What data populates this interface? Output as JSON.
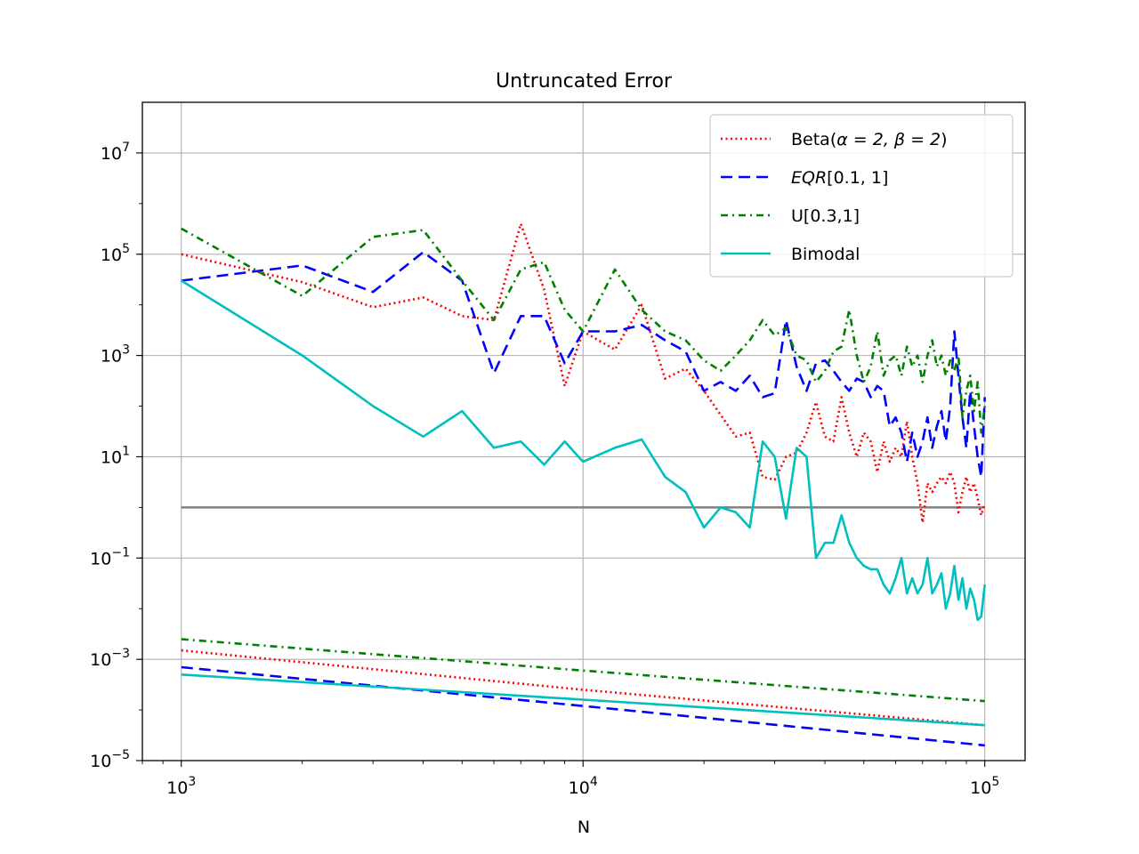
{
  "chart_data": {
    "type": "line",
    "title": "Untruncated Error",
    "xlabel": "N",
    "ylabel": "",
    "xscale": "log",
    "yscale": "log",
    "xlim": [
      800,
      126000
    ],
    "ylim": [
      1e-05,
      100000000
    ],
    "grid": true,
    "legend_position": "top-right",
    "x_ticks": [
      {
        "value": 1000,
        "base": "10",
        "exp": "3"
      },
      {
        "value": 10000,
        "base": "10",
        "exp": "4"
      },
      {
        "value": 100000,
        "base": "10",
        "exp": "5"
      }
    ],
    "y_ticks": [
      {
        "value": 1e-05,
        "base": "10",
        "exp": "−5"
      },
      {
        "value": 0.001,
        "base": "10",
        "exp": "−3"
      },
      {
        "value": 0.1,
        "base": "10",
        "exp": "−1"
      },
      {
        "value": 10,
        "base": "10",
        "exp": "1"
      },
      {
        "value": 1000,
        "base": "10",
        "exp": "3"
      },
      {
        "value": 100000,
        "base": "10",
        "exp": "5"
      },
      {
        "value": 10000000,
        "base": "10",
        "exp": "7"
      }
    ],
    "reference_line": {
      "value": 1,
      "color": "#808080"
    },
    "series": [
      {
        "name": "Beta(α = 2, β = 2)",
        "legend_prefix": "Beta(",
        "legend_math": "α = 2, β = 2",
        "legend_suffix": ")",
        "color": "#ff0000",
        "dash": "2,3.5",
        "points": [
          [
            1000,
            100000
          ],
          [
            2000,
            28000
          ],
          [
            3000,
            9000
          ],
          [
            4000,
            14000
          ],
          [
            5000,
            6000
          ],
          [
            6000,
            5000
          ],
          [
            7000,
            400000
          ],
          [
            8000,
            20000
          ],
          [
            9000,
            250
          ],
          [
            10000,
            3000
          ],
          [
            12000,
            1300
          ],
          [
            14000,
            10000
          ],
          [
            16000,
            350
          ],
          [
            18000,
            550
          ],
          [
            20000,
            200
          ],
          [
            24000,
            25
          ],
          [
            26000,
            30
          ],
          [
            28000,
            4
          ],
          [
            30000,
            3.5
          ],
          [
            32000,
            10
          ],
          [
            34000,
            12
          ],
          [
            36000,
            30
          ],
          [
            38000,
            120
          ],
          [
            40000,
            25
          ],
          [
            42000,
            20
          ],
          [
            44000,
            150
          ],
          [
            46000,
            30
          ],
          [
            48000,
            10
          ],
          [
            50000,
            30
          ],
          [
            52000,
            20
          ],
          [
            54000,
            5
          ],
          [
            56000,
            20
          ],
          [
            58000,
            8
          ],
          [
            60000,
            15
          ],
          [
            62000,
            10
          ],
          [
            64000,
            50
          ],
          [
            66000,
            10
          ],
          [
            68000,
            3
          ],
          [
            70000,
            0.5
          ],
          [
            72000,
            3
          ],
          [
            74000,
            2
          ],
          [
            76000,
            3
          ],
          [
            78000,
            4
          ],
          [
            80000,
            3
          ],
          [
            82000,
            5
          ],
          [
            84000,
            3
          ],
          [
            86000,
            0.8
          ],
          [
            88000,
            2
          ],
          [
            90000,
            4
          ],
          [
            92000,
            2
          ],
          [
            94000,
            3
          ],
          [
            96000,
            1.5
          ],
          [
            98000,
            0.7
          ],
          [
            100000,
            1.2
          ]
        ],
        "lower_points": [
          [
            1000,
            0.0015
          ],
          [
            10000,
            0.00025
          ],
          [
            100000,
            5e-05
          ]
        ]
      },
      {
        "name": "EQR[0.1, 1]",
        "legend_prefix": "",
        "legend_math": "EQR",
        "legend_suffix": "[0.1, 1]",
        "color": "#0000ff",
        "dash": "13,7",
        "points": [
          [
            1000,
            30000
          ],
          [
            2000,
            60000
          ],
          [
            3000,
            18000
          ],
          [
            4000,
            110000
          ],
          [
            5000,
            30000
          ],
          [
            6000,
            450
          ],
          [
            7000,
            6000
          ],
          [
            8000,
            6000
          ],
          [
            9000,
            700
          ],
          [
            10000,
            3000
          ],
          [
            12000,
            3000
          ],
          [
            14000,
            4000
          ],
          [
            16000,
            2000
          ],
          [
            18000,
            1200
          ],
          [
            20000,
            200
          ],
          [
            22000,
            300
          ],
          [
            24000,
            200
          ],
          [
            26000,
            400
          ],
          [
            28000,
            150
          ],
          [
            30000,
            180
          ],
          [
            32000,
            5000
          ],
          [
            34000,
            600
          ],
          [
            36000,
            200
          ],
          [
            38000,
            700
          ],
          [
            40000,
            800
          ],
          [
            42000,
            500
          ],
          [
            44000,
            300
          ],
          [
            46000,
            200
          ],
          [
            48000,
            350
          ],
          [
            50000,
            300
          ],
          [
            52000,
            150
          ],
          [
            54000,
            250
          ],
          [
            56000,
            200
          ],
          [
            58000,
            40
          ],
          [
            60000,
            60
          ],
          [
            62000,
            30
          ],
          [
            64000,
            8
          ],
          [
            66000,
            30
          ],
          [
            68000,
            10
          ],
          [
            70000,
            20
          ],
          [
            72000,
            60
          ],
          [
            74000,
            15
          ],
          [
            76000,
            40
          ],
          [
            78000,
            80
          ],
          [
            80000,
            20
          ],
          [
            82000,
            100
          ],
          [
            84000,
            3000
          ],
          [
            86000,
            400
          ],
          [
            88000,
            60
          ],
          [
            90000,
            15
          ],
          [
            92000,
            200
          ],
          [
            94000,
            40
          ],
          [
            96000,
            10
          ],
          [
            98000,
            4
          ],
          [
            100000,
            150
          ]
        ],
        "lower_points": [
          [
            1000,
            0.0007
          ],
          [
            10000,
            0.00012
          ],
          [
            100000,
            2e-05
          ]
        ]
      },
      {
        "name": "U[0.3,1]",
        "legend_prefix": "U[0.3,1]",
        "legend_math": "",
        "legend_suffix": "",
        "color": "#008000",
        "dash": "8,5,2,5",
        "points": [
          [
            1000,
            320000
          ],
          [
            2000,
            15000
          ],
          [
            3000,
            220000
          ],
          [
            4000,
            300000
          ],
          [
            5000,
            30000
          ],
          [
            6000,
            5000
          ],
          [
            7000,
            50000
          ],
          [
            8000,
            70000
          ],
          [
            9000,
            8000
          ],
          [
            10000,
            3000
          ],
          [
            12000,
            50000
          ],
          [
            14000,
            8000
          ],
          [
            16000,
            3000
          ],
          [
            18000,
            2000
          ],
          [
            20000,
            800
          ],
          [
            22000,
            500
          ],
          [
            24000,
            1000
          ],
          [
            26000,
            2000
          ],
          [
            28000,
            5000
          ],
          [
            30000,
            2500
          ],
          [
            32000,
            3500
          ],
          [
            34000,
            1000
          ],
          [
            36000,
            800
          ],
          [
            38000,
            300
          ],
          [
            40000,
            500
          ],
          [
            42000,
            1200
          ],
          [
            44000,
            1500
          ],
          [
            46000,
            8000
          ],
          [
            48000,
            1000
          ],
          [
            50000,
            300
          ],
          [
            52000,
            600
          ],
          [
            54000,
            3000
          ],
          [
            56000,
            400
          ],
          [
            58000,
            800
          ],
          [
            60000,
            1000
          ],
          [
            62000,
            400
          ],
          [
            64000,
            1500
          ],
          [
            66000,
            600
          ],
          [
            68000,
            1000
          ],
          [
            70000,
            300
          ],
          [
            72000,
            1000
          ],
          [
            74000,
            2000
          ],
          [
            76000,
            600
          ],
          [
            78000,
            1000
          ],
          [
            80000,
            400
          ],
          [
            82000,
            800
          ],
          [
            84000,
            500
          ],
          [
            86000,
            1000
          ],
          [
            88000,
            60
          ],
          [
            90000,
            200
          ],
          [
            92000,
            400
          ],
          [
            94000,
            80
          ],
          [
            96000,
            300
          ],
          [
            98000,
            30
          ],
          [
            100000,
            100
          ]
        ],
        "lower_points": [
          [
            1000,
            0.0025
          ],
          [
            10000,
            0.0006
          ],
          [
            100000,
            0.00015
          ]
        ]
      },
      {
        "name": "Bimodal",
        "legend_prefix": "Bimodal",
        "legend_math": "",
        "legend_suffix": "",
        "color": "#00bfbf",
        "dash": "",
        "points": [
          [
            1000,
            30000
          ],
          [
            2000,
            1000
          ],
          [
            3000,
            100
          ],
          [
            4000,
            25
          ],
          [
            5000,
            80
          ],
          [
            6000,
            15
          ],
          [
            7000,
            20
          ],
          [
            8000,
            7
          ],
          [
            9000,
            20
          ],
          [
            10000,
            8
          ],
          [
            12000,
            15
          ],
          [
            14000,
            22
          ],
          [
            16000,
            4
          ],
          [
            18000,
            2
          ],
          [
            20000,
            0.4
          ],
          [
            22000,
            1
          ],
          [
            24000,
            0.8
          ],
          [
            26000,
            0.4
          ],
          [
            28000,
            20
          ],
          [
            30000,
            10
          ],
          [
            32000,
            0.6
          ],
          [
            34000,
            15
          ],
          [
            36000,
            10
          ],
          [
            38000,
            0.1
          ],
          [
            40000,
            0.2
          ],
          [
            42000,
            0.2
          ],
          [
            44000,
            0.7
          ],
          [
            46000,
            0.2
          ],
          [
            48000,
            0.1
          ],
          [
            50000,
            0.07
          ],
          [
            52000,
            0.06
          ],
          [
            54000,
            0.06
          ],
          [
            56000,
            0.03
          ],
          [
            58000,
            0.02
          ],
          [
            60000,
            0.04
          ],
          [
            62000,
            0.1
          ],
          [
            64000,
            0.02
          ],
          [
            66000,
            0.04
          ],
          [
            68000,
            0.02
          ],
          [
            70000,
            0.03
          ],
          [
            72000,
            0.1
          ],
          [
            74000,
            0.02
          ],
          [
            76000,
            0.03
          ],
          [
            78000,
            0.05
          ],
          [
            80000,
            0.01
          ],
          [
            82000,
            0.02
          ],
          [
            84000,
            0.07
          ],
          [
            86000,
            0.015
          ],
          [
            88000,
            0.04
          ],
          [
            90000,
            0.01
          ],
          [
            92000,
            0.025
          ],
          [
            94000,
            0.015
          ],
          [
            96000,
            0.006
          ],
          [
            98000,
            0.007
          ],
          [
            100000,
            0.03
          ]
        ],
        "lower_points": [
          [
            1000,
            0.0005
          ],
          [
            10000,
            0.00016
          ],
          [
            100000,
            5e-05
          ]
        ]
      }
    ]
  }
}
